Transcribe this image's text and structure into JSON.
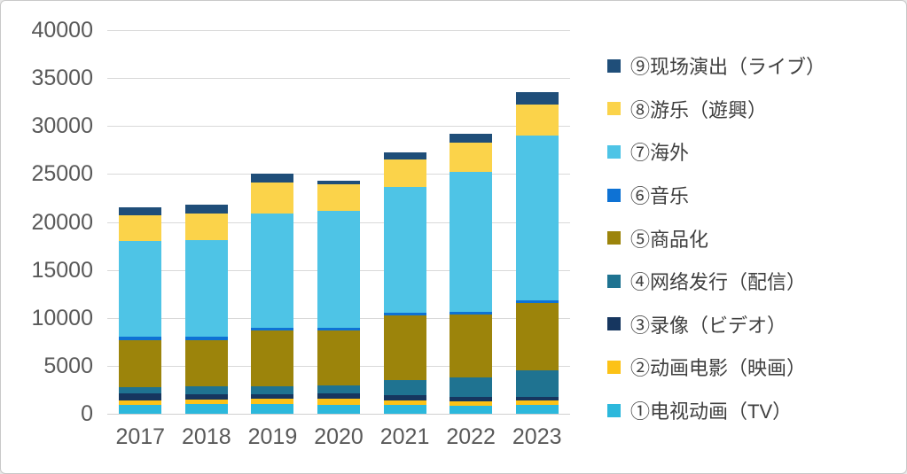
{
  "colors": {
    "background": "#ffffff",
    "border": "#c8c8c8",
    "gridline": "#d9d9d9",
    "axis_text": "#595959",
    "legend_text": "#3f3f3f"
  },
  "chart_data": {
    "type": "bar",
    "stacked": true,
    "title": "",
    "xlabel": "",
    "ylabel": "",
    "categories": [
      "2017",
      "2018",
      "2019",
      "2020",
      "2021",
      "2022",
      "2023"
    ],
    "series": [
      {
        "name": "①电视动画（TV）",
        "color": "#2cb8dc",
        "values": [
          950,
          1050,
          1050,
          950,
          900,
          800,
          900
        ]
      },
      {
        "name": "②动画电影（映画）",
        "color": "#fcc217",
        "values": [
          400,
          400,
          550,
          600,
          450,
          500,
          500
        ]
      },
      {
        "name": "③录像（ビデオ）",
        "color": "#16365f",
        "values": [
          750,
          550,
          450,
          550,
          550,
          500,
          400
        ]
      },
      {
        "name": "④网络发行（配信）",
        "color": "#1f7391",
        "values": [
          650,
          850,
          800,
          850,
          1650,
          1950,
          2750
        ]
      },
      {
        "name": "⑤商品化",
        "color": "#9c840b",
        "values": [
          4900,
          4850,
          5800,
          5700,
          6700,
          6600,
          7000
        ]
      },
      {
        "name": "⑥音乐",
        "color": "#0e72d4",
        "values": [
          350,
          350,
          300,
          300,
          300,
          300,
          300
        ]
      },
      {
        "name": "⑦海外",
        "color": "#4ec4e6",
        "values": [
          10000,
          10050,
          11950,
          12250,
          13100,
          14600,
          17200
        ]
      },
      {
        "name": "⑧游乐（遊興）",
        "color": "#fbd34a",
        "values": [
          2650,
          2800,
          3250,
          2700,
          2850,
          3000,
          3150
        ]
      },
      {
        "name": "⑨现场演出（ライブ）",
        "color": "#1f4e79",
        "values": [
          900,
          900,
          900,
          400,
          750,
          950,
          1300
        ]
      }
    ],
    "ylim": [
      0,
      40000
    ],
    "y_step": 5000,
    "y_ticks": [
      "40000",
      "35000",
      "30000",
      "25000",
      "20000",
      "15000",
      "10000",
      "5000",
      "0"
    ],
    "grid": true,
    "legend_position": "right",
    "legend_order": "top-is-last-series"
  }
}
